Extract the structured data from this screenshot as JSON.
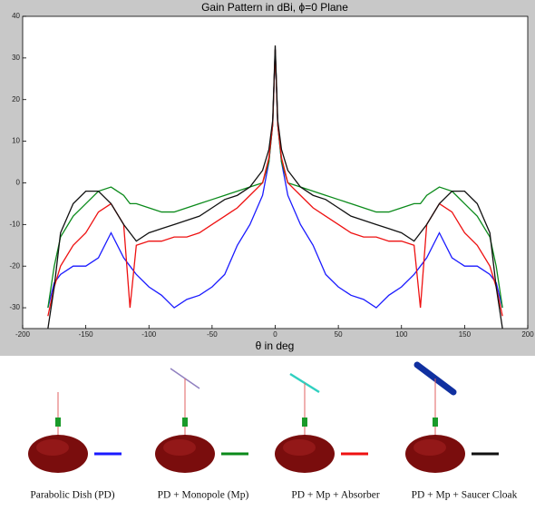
{
  "chart_data": {
    "type": "line",
    "title": "Gain Pattern in dBi, ϕ=0 Plane",
    "xlabel": "θ in deg",
    "x": [
      -180,
      -175,
      -170,
      -160,
      -150,
      -140,
      -130,
      -120,
      -115,
      -110,
      -100,
      -90,
      -80,
      -70,
      -60,
      -50,
      -40,
      -30,
      -20,
      -10,
      -5,
      -2,
      0,
      2,
      5,
      10,
      20,
      30,
      40,
      50,
      60,
      70,
      80,
      90,
      100,
      110,
      115,
      120,
      130,
      140,
      150,
      160,
      170,
      175,
      180
    ],
    "series": [
      {
        "name": "Parabolic Dish (PD)",
        "color": "#1a1aff",
        "values": [
          -30,
          -24,
          -22,
          -20,
          -20,
          -18,
          -12,
          -18,
          -20,
          -22,
          -25,
          -27,
          -30,
          -28,
          -27,
          -25,
          -22,
          -15,
          -10,
          -3,
          5,
          14,
          32,
          14,
          5,
          -3,
          -10,
          -15,
          -22,
          -25,
          -27,
          -28,
          -30,
          -27,
          -25,
          -22,
          -20,
          -18,
          -12,
          -18,
          -20,
          -20,
          -22,
          -24,
          -30
        ]
      },
      {
        "name": "PD + Monopole (Mp)",
        "color": "#0a8a1a",
        "values": [
          -30,
          -20,
          -13,
          -8,
          -5,
          -2,
          -1,
          -3,
          -5,
          -5,
          -6,
          -7,
          -7,
          -6,
          -5,
          -4,
          -3,
          -2,
          -1,
          0,
          5,
          14,
          32,
          14,
          5,
          0,
          -1,
          -2,
          -3,
          -4,
          -5,
          -6,
          -7,
          -7,
          -6,
          -5,
          -5,
          -3,
          -1,
          -2,
          -5,
          -8,
          -13,
          -20,
          -30
        ]
      },
      {
        "name": "PD + Mp + Absorber",
        "color": "#ee1111",
        "values": [
          -32,
          -25,
          -20,
          -15,
          -12,
          -7,
          -5,
          -10,
          -30,
          -15,
          -14,
          -14,
          -13,
          -13,
          -12,
          -10,
          -8,
          -6,
          -3,
          0,
          6,
          14,
          32,
          14,
          6,
          0,
          -3,
          -6,
          -8,
          -10,
          -12,
          -13,
          -13,
          -14,
          -14,
          -15,
          -30,
          -10,
          -5,
          -7,
          -12,
          -15,
          -20,
          -25,
          -32
        ]
      },
      {
        "name": "PD + Mp + Saucer Cloak",
        "color": "#111111",
        "values": [
          -35,
          -25,
          -12,
          -5,
          -2,
          -2,
          -5,
          -10,
          -12,
          -14,
          -12,
          -11,
          -10,
          -9,
          -8,
          -6,
          -4,
          -3,
          -1,
          3,
          8,
          15,
          33,
          15,
          8,
          3,
          -1,
          -3,
          -4,
          -6,
          -8,
          -9,
          -10,
          -11,
          -12,
          -14,
          -12,
          -10,
          -5,
          -2,
          -2,
          -5,
          -12,
          -25,
          -35
        ]
      }
    ],
    "xlim": [
      -200,
      200
    ],
    "ylim": [
      -35,
      40
    ],
    "xticks": [
      -200,
      -150,
      -100,
      -50,
      0,
      50,
      100,
      150,
      200
    ],
    "yticks": [
      -30,
      -20,
      -10,
      0,
      10,
      20,
      30,
      40
    ]
  }
}
